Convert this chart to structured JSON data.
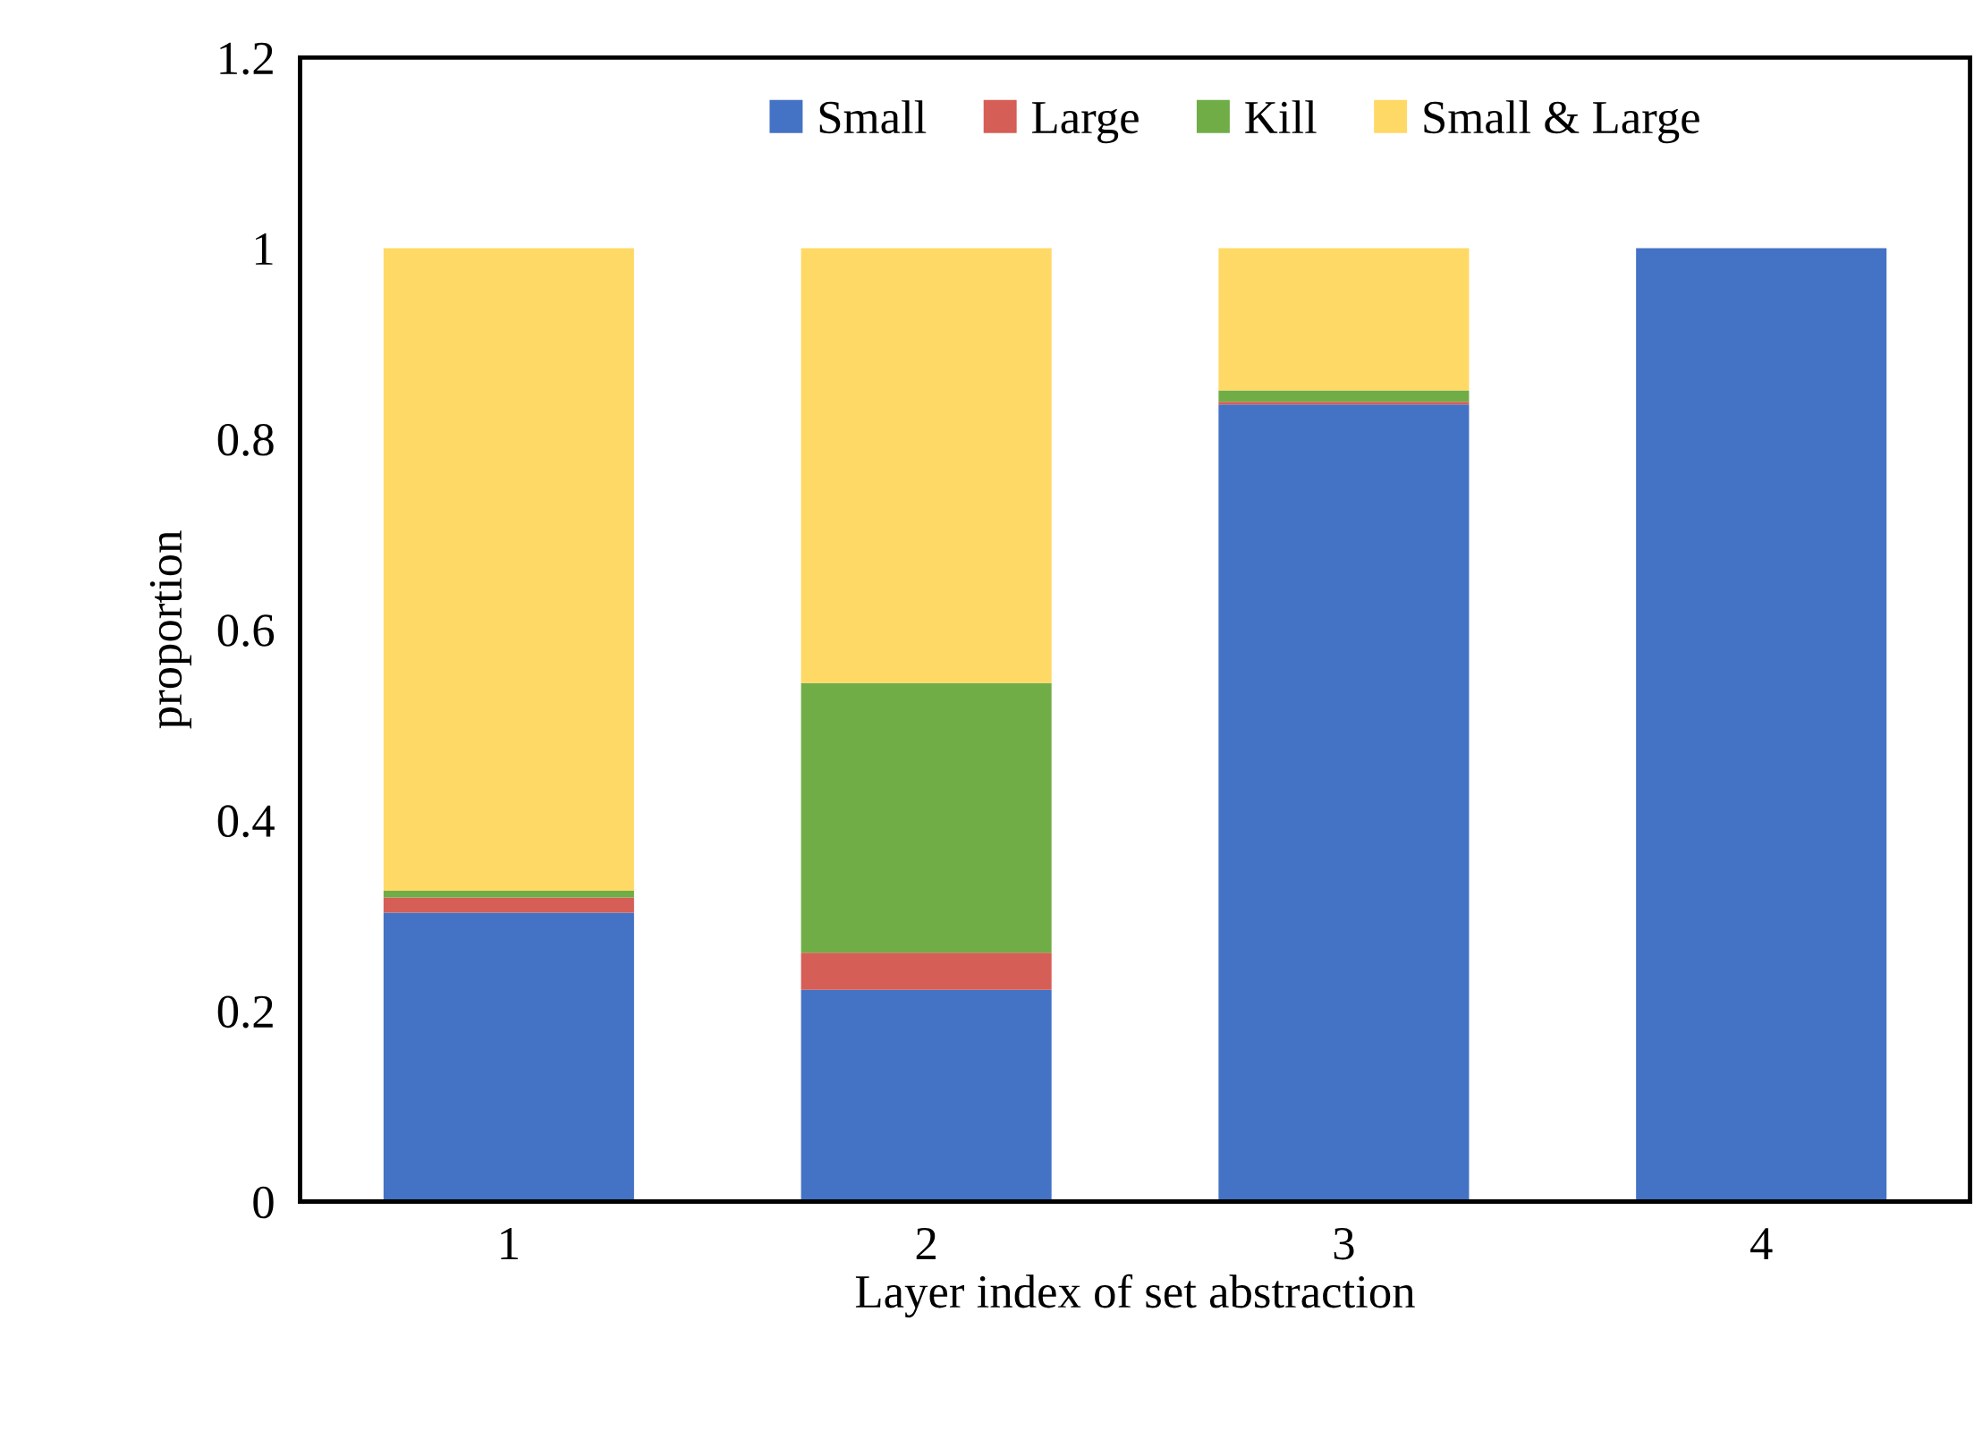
{
  "chart_data": {
    "type": "bar",
    "stacked": true,
    "xlabel": "Layer index of set abstraction",
    "ylabel": "proportion",
    "categories": [
      "1",
      "2",
      "3",
      "4"
    ],
    "series": [
      {
        "name": "Small",
        "color": "#4472c4",
        "values": [
          0.303,
          0.222,
          0.836,
          1
        ]
      },
      {
        "name": "Large",
        "color": "#d55e57",
        "values": [
          0.016,
          0.039,
          0.003,
          0
        ]
      },
      {
        "name": "Kill",
        "color": "#70ad47",
        "values": [
          0.007,
          0.283,
          0.012,
          0
        ]
      },
      {
        "name": "Small & Large",
        "color": "#ffd966",
        "values": [
          0.674,
          0.456,
          0.149,
          0
        ]
      }
    ],
    "ylim": [
      0,
      1.2
    ],
    "yticks": [
      0,
      0.2,
      0.4,
      0.6,
      0.8,
      1,
      1.2
    ],
    "grid": false,
    "legend": "top"
  }
}
